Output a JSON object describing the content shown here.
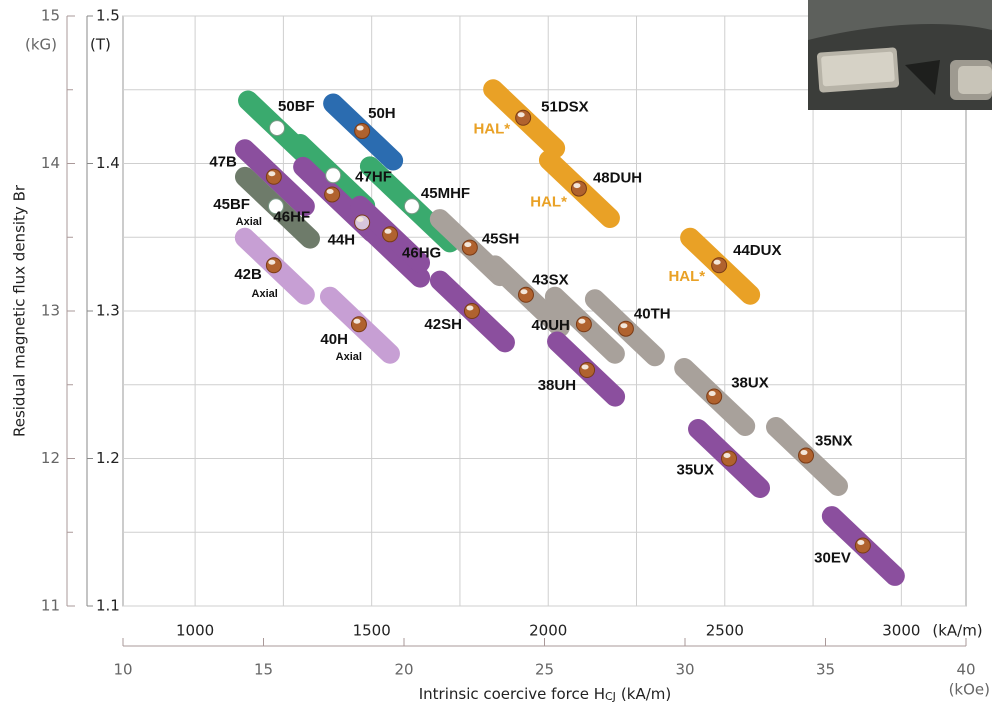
{
  "chart_data": {
    "type": "scatter",
    "y_label": "Residual magnetic flux density Br",
    "x_label": "Intrinsic coercive force H",
    "x_label_sub": "CJ",
    "x_label_unit": "(kA/m)",
    "xlim": [
      795.8,
      3183.1
    ],
    "xticks": [
      1000,
      1500,
      2000,
      2500,
      3000
    ],
    "xminor": [
      1250,
      1750,
      2250,
      2750
    ],
    "x_unit": "(kA/m)",
    "x2lim": [
      10,
      40
    ],
    "x2ticks": [
      10,
      15,
      20,
      25,
      30,
      35,
      40
    ],
    "x2_unit": "(kOe)",
    "ylim": [
      1.1,
      1.5
    ],
    "yticks": [
      1.1,
      1.2,
      1.3,
      1.4,
      1.5
    ],
    "yminor": [
      1.15,
      1.25,
      1.35,
      1.45
    ],
    "y_unit": "(T)",
    "y2lim": [
      11,
      15
    ],
    "y2ticks": [
      11,
      12,
      13,
      14,
      15
    ],
    "y2_unit": "(kG)",
    "grid": true,
    "series": [
      {
        "name": "50BF",
        "color": "#3aaa6e",
        "marker_color": "#ffffff",
        "x": 1232,
        "y": 1.424
      },
      {
        "name": "50H",
        "color": "#2b6cb0",
        "marker_color": "#b0622e",
        "x": 1473,
        "y": 1.422
      },
      {
        "name": "47B",
        "color": "#8b4f9e",
        "marker_color": "#b0622e",
        "x": 1223,
        "y": 1.391
      },
      {
        "name": "47HF",
        "color": "#3aaa6e",
        "marker_color": "#ffffff",
        "x": 1391,
        "y": 1.392
      },
      {
        "name": "45BF",
        "color": "#6e7b6a",
        "marker_color": "#ffffff",
        "x": 1229,
        "y": 1.371,
        "note": "Axial",
        "note_color": "#111111"
      },
      {
        "name": "46HF",
        "color": "#8b4f9e",
        "marker_color": "#b0622e",
        "x": 1388,
        "y": 1.379
      },
      {
        "name": "44H",
        "color": "#8b4f9e",
        "marker_color": "#d8c6dc",
        "x": 1473,
        "y": 1.36
      },
      {
        "name": "45MHF",
        "color": "#3aaa6e",
        "marker_color": "#ffffff",
        "x": 1614,
        "y": 1.371
      },
      {
        "name": "46HG",
        "color": "#8b4f9e",
        "marker_color": "#b0622e",
        "x": 1552,
        "y": 1.352
      },
      {
        "name": "45SH",
        "color": "#a8a19b",
        "marker_color": "#b0622e",
        "x": 1778,
        "y": 1.343
      },
      {
        "name": "42B",
        "color": "#c79fd4",
        "marker_color": "#b0622e",
        "x": 1223,
        "y": 1.331,
        "note": "Axial",
        "note_color": "#111111"
      },
      {
        "name": "43SX",
        "color": "#a8a19b",
        "marker_color": "#b0622e",
        "x": 1937,
        "y": 1.311
      },
      {
        "name": "42SH",
        "color": "#8b4f9e",
        "marker_color": "#b0622e",
        "x": 1784,
        "y": 1.3
      },
      {
        "name": "40H",
        "color": "#c79fd4",
        "marker_color": "#b0622e",
        "x": 1464,
        "y": 1.291,
        "note": "Axial",
        "note_color": "#111111"
      },
      {
        "name": "40UH",
        "color": "#a8a19b",
        "marker_color": "#b0622e",
        "x": 2101,
        "y": 1.291
      },
      {
        "name": "40TH",
        "color": "#a8a19b",
        "marker_color": "#b0622e",
        "x": 2220,
        "y": 1.288
      },
      {
        "name": "38UH",
        "color": "#8b4f9e",
        "marker_color": "#b0622e",
        "x": 2110,
        "y": 1.26
      },
      {
        "name": "51DSX",
        "color": "#e9a126",
        "marker_color": "#b0622e",
        "x": 1929,
        "y": 1.431,
        "note": "HAL*",
        "note_color": "#e9a126"
      },
      {
        "name": "48DUH",
        "color": "#e9a126",
        "marker_color": "#b0622e",
        "x": 2087,
        "y": 1.383,
        "note": "HAL*",
        "note_color": "#e9a126"
      },
      {
        "name": "44DUX",
        "color": "#e9a126",
        "marker_color": "#b0622e",
        "x": 2484,
        "y": 1.331,
        "note": "HAL*",
        "note_color": "#e9a126"
      },
      {
        "name": "38UX",
        "color": "#a8a19b",
        "marker_color": "#b0622e",
        "x": 2470,
        "y": 1.242
      },
      {
        "name": "35UX",
        "color": "#8b4f9e",
        "marker_color": "#b0622e",
        "x": 2512,
        "y": 1.2
      },
      {
        "name": "35NX",
        "color": "#a8a19b",
        "marker_color": "#b0622e",
        "x": 2730,
        "y": 1.202
      },
      {
        "name": "30EV",
        "color": "#8b4f9e",
        "marker_color": "#b0622e",
        "x": 2891,
        "y": 1.141
      }
    ]
  }
}
